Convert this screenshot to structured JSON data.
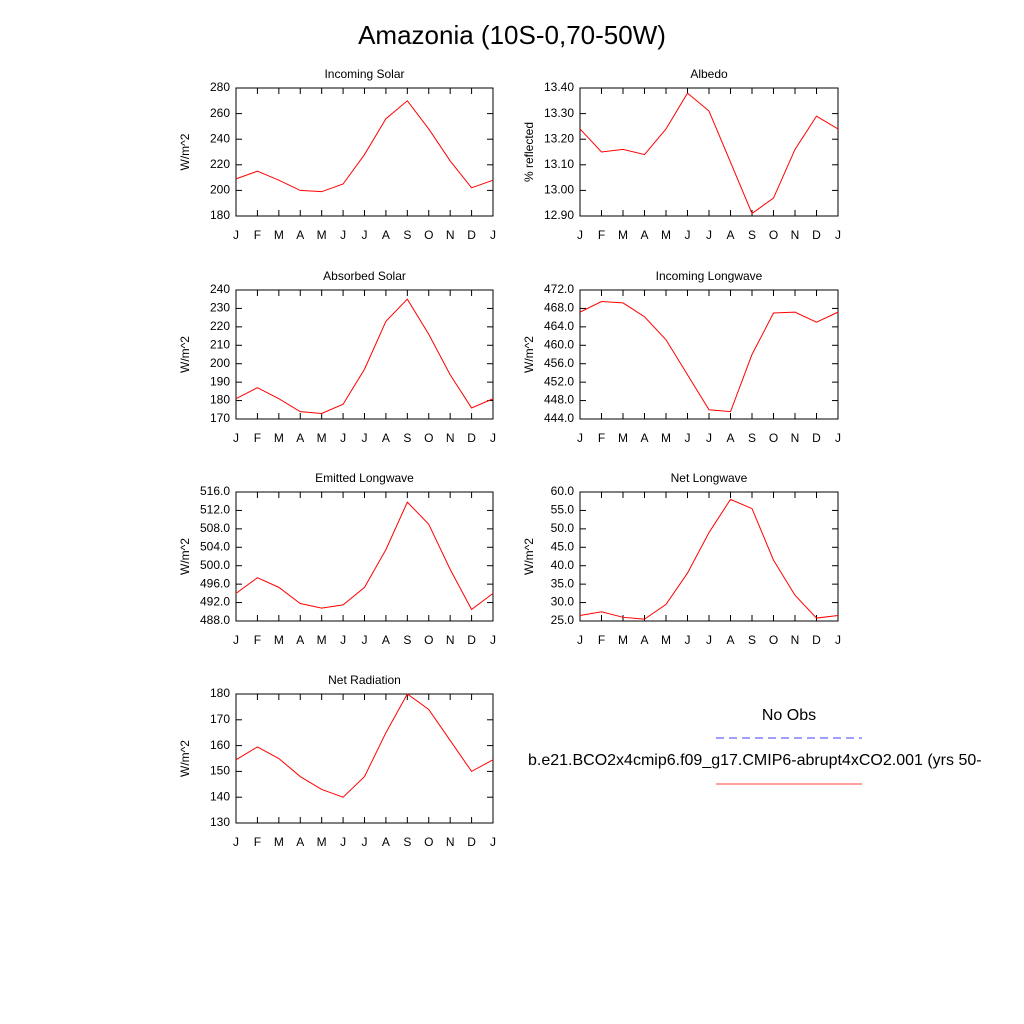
{
  "title": "Amazonia (10S-0,70-50W)",
  "legend": [
    {
      "name": "No Obs",
      "color": "#0000ff",
      "dashed": true
    },
    {
      "name": "b.e21.BCO2x4cmip6.f09_g17.CMIP6-abrupt4xCO2.001 (yrs 50-",
      "color": "#ff0000",
      "dashed": false
    }
  ],
  "chart_data": [
    {
      "type": "line",
      "title": "Incoming Solar",
      "ylabel": "W/m^2",
      "categories": [
        "J",
        "F",
        "M",
        "A",
        "M",
        "J",
        "J",
        "A",
        "S",
        "O",
        "N",
        "D",
        "J"
      ],
      "series": [
        {
          "color": "#ff0000",
          "values": [
            209,
            215,
            208,
            200,
            199,
            205,
            228,
            256,
            270,
            248,
            223,
            202,
            208
          ]
        }
      ],
      "ylim": [
        180,
        280
      ],
      "yticks": [
        180,
        200,
        220,
        240,
        260,
        280
      ]
    },
    {
      "type": "line",
      "title": "Albedo",
      "ylabel": "% reflected",
      "categories": [
        "J",
        "F",
        "M",
        "A",
        "M",
        "J",
        "J",
        "A",
        "S",
        "O",
        "N",
        "D",
        "J"
      ],
      "series": [
        {
          "color": "#ff0000",
          "values": [
            13.24,
            13.15,
            13.16,
            13.14,
            13.24,
            13.38,
            13.31,
            13.11,
            12.91,
            12.97,
            13.16,
            13.29,
            13.24
          ]
        }
      ],
      "ylim": [
        12.9,
        13.4
      ],
      "yticks": [
        {
          "value": 12.9,
          "label": "12.90"
        },
        {
          "value": 13.0,
          "label": "13.00"
        },
        {
          "value": 13.1,
          "label": "13.10"
        },
        {
          "value": 13.2,
          "label": "13.20"
        },
        {
          "value": 13.3,
          "label": "13.30"
        },
        {
          "value": 13.4,
          "label": "13.40"
        }
      ]
    },
    {
      "type": "line",
      "title": "Absorbed Solar",
      "ylabel": "W/m^2",
      "categories": [
        "J",
        "F",
        "M",
        "A",
        "M",
        "J",
        "J",
        "A",
        "S",
        "O",
        "N",
        "D",
        "J"
      ],
      "series": [
        {
          "color": "#ff0000",
          "values": [
            181,
            187,
            181,
            174,
            173,
            178,
            197,
            223,
            235,
            216,
            194,
            176,
            181
          ]
        }
      ],
      "ylim": [
        170,
        240
      ],
      "yticks": [
        170,
        180,
        190,
        200,
        210,
        220,
        230,
        240
      ]
    },
    {
      "type": "line",
      "title": "Incoming Longwave",
      "ylabel": "W/m^2",
      "categories": [
        "J",
        "F",
        "M",
        "A",
        "M",
        "J",
        "J",
        "A",
        "S",
        "O",
        "N",
        "D",
        "J"
      ],
      "series": [
        {
          "color": "#ff0000",
          "values": [
            467.2,
            469.5,
            469.2,
            466.2,
            461.2,
            453.6,
            446.0,
            445.6,
            458.0,
            467.0,
            467.2,
            465.0,
            467.2
          ]
        }
      ],
      "ylim": [
        444,
        472
      ],
      "yticks": [
        {
          "value": 444,
          "label": "444.0"
        },
        {
          "value": 448,
          "label": "448.0"
        },
        {
          "value": 452,
          "label": "452.0"
        },
        {
          "value": 456,
          "label": "456.0"
        },
        {
          "value": 460,
          "label": "460.0"
        },
        {
          "value": 464,
          "label": "464.0"
        },
        {
          "value": 468,
          "label": "468.0"
        },
        {
          "value": 472,
          "label": "472.0"
        }
      ]
    },
    {
      "type": "line",
      "title": "Emitted Longwave",
      "ylabel": "W/m^2",
      "categories": [
        "J",
        "F",
        "M",
        "A",
        "M",
        "J",
        "J",
        "A",
        "S",
        "O",
        "N",
        "D",
        "J"
      ],
      "series": [
        {
          "color": "#ff0000",
          "values": [
            494.0,
            497.4,
            495.3,
            491.8,
            490.8,
            491.5,
            495.3,
            503.5,
            513.8,
            509.0,
            499.2,
            490.5,
            494.0
          ]
        }
      ],
      "ylim": [
        488,
        516
      ],
      "yticks": [
        {
          "value": 488,
          "label": "488.0"
        },
        {
          "value": 492,
          "label": "492.0"
        },
        {
          "value": 496,
          "label": "496.0"
        },
        {
          "value": 500,
          "label": "500.0"
        },
        {
          "value": 504,
          "label": "504.0"
        },
        {
          "value": 508,
          "label": "508.0"
        },
        {
          "value": 512,
          "label": "512.0"
        },
        {
          "value": 516,
          "label": "516.0"
        }
      ]
    },
    {
      "type": "line",
      "title": "Net Longwave",
      "ylabel": "W/m^2",
      "categories": [
        "J",
        "F",
        "M",
        "A",
        "M",
        "J",
        "J",
        "A",
        "S",
        "O",
        "N",
        "D",
        "J"
      ],
      "series": [
        {
          "color": "#ff0000",
          "values": [
            26.5,
            27.5,
            26.0,
            25.5,
            29.5,
            38.0,
            49.0,
            58.0,
            55.5,
            41.5,
            32.0,
            25.8,
            26.5
          ]
        }
      ],
      "ylim": [
        25,
        60
      ],
      "yticks": [
        {
          "value": 25,
          "label": "25.0"
        },
        {
          "value": 30,
          "label": "30.0"
        },
        {
          "value": 35,
          "label": "35.0"
        },
        {
          "value": 40,
          "label": "40.0"
        },
        {
          "value": 45,
          "label": "45.0"
        },
        {
          "value": 50,
          "label": "50.0"
        },
        {
          "value": 55,
          "label": "55.0"
        },
        {
          "value": 60,
          "label": "60.0"
        }
      ]
    },
    {
      "type": "line",
      "title": "Net Radiation",
      "ylabel": "W/m^2",
      "categories": [
        "J",
        "F",
        "M",
        "A",
        "M",
        "J",
        "J",
        "A",
        "S",
        "O",
        "N",
        "D",
        "J"
      ],
      "series": [
        {
          "color": "#ff0000",
          "values": [
            154.5,
            159.5,
            155.0,
            148.0,
            143.0,
            140.0,
            148.0,
            165.0,
            180.0,
            174.0,
            162.0,
            150.0,
            154.5
          ]
        }
      ],
      "ylim": [
        130,
        180
      ],
      "yticks": [
        130,
        140,
        150,
        160,
        170,
        180
      ]
    }
  ]
}
